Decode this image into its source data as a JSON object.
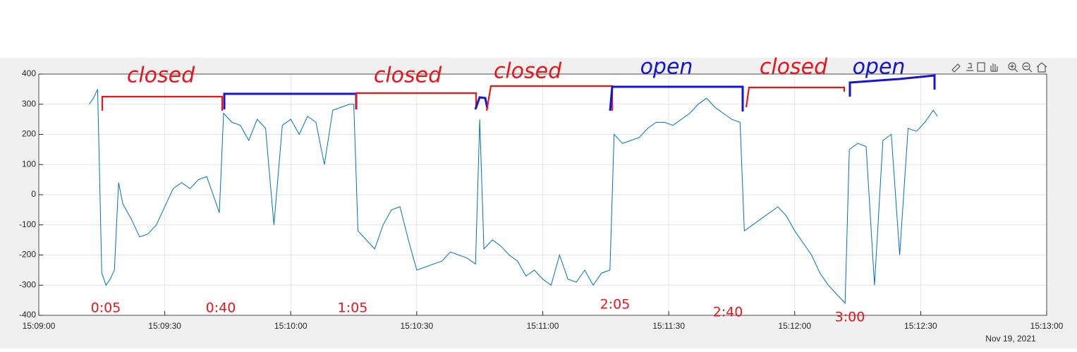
{
  "chart_data": {
    "type": "line",
    "color": "#0072bd",
    "grid": true,
    "x_axis_date": "Nov 19, 2021",
    "xlim": [
      "15:09:00",
      "15:13:00"
    ],
    "xticks": [
      "15:09:00",
      "15:09:30",
      "15:10:00",
      "15:10:30",
      "15:11:00",
      "15:11:30",
      "15:12:00",
      "15:12:30",
      "15:13:00"
    ],
    "ylim": [
      -400,
      400
    ],
    "yticks": [
      -400,
      -300,
      -200,
      -100,
      0,
      100,
      200,
      300,
      400
    ],
    "x": [
      "15:09:12",
      "15:09:13",
      "15:09:14",
      "15:09:15",
      "15:09:16",
      "15:09:17",
      "15:09:18",
      "15:09:19",
      "15:09:20",
      "15:09:22",
      "15:09:24",
      "15:09:26",
      "15:09:28",
      "15:09:30",
      "15:09:32",
      "15:09:34",
      "15:09:36",
      "15:09:38",
      "15:09:40",
      "15:09:42",
      "15:09:43",
      "15:09:44",
      "15:09:46",
      "15:09:48",
      "15:09:50",
      "15:09:52",
      "15:09:54",
      "15:09:56",
      "15:09:58",
      "15:10:00",
      "15:10:02",
      "15:10:04",
      "15:10:06",
      "15:10:08",
      "15:10:10",
      "15:10:12",
      "15:10:14",
      "15:10:15",
      "15:10:16",
      "15:10:18",
      "15:10:20",
      "15:10:22",
      "15:10:24",
      "15:10:26",
      "15:10:28",
      "15:10:30",
      "15:10:32",
      "15:10:34",
      "15:10:36",
      "15:10:38",
      "15:10:40",
      "15:10:42",
      "15:10:44",
      "15:10:45",
      "15:10:46",
      "15:10:48",
      "15:10:50",
      "15:10:52",
      "15:10:54",
      "15:10:56",
      "15:10:58",
      "15:11:00",
      "15:11:02",
      "15:11:04",
      "15:11:06",
      "15:11:08",
      "15:11:10",
      "15:11:12",
      "15:11:14",
      "15:11:16",
      "15:11:17",
      "15:11:19",
      "15:11:21",
      "15:11:23",
      "15:11:25",
      "15:11:27",
      "15:11:29",
      "15:11:31",
      "15:11:33",
      "15:11:35",
      "15:11:37",
      "15:11:39",
      "15:11:41",
      "15:11:43",
      "15:11:45",
      "15:11:47",
      "15:11:48",
      "15:11:50",
      "15:11:52",
      "15:11:54",
      "15:11:56",
      "15:11:58",
      "15:12:00",
      "15:12:02",
      "15:12:04",
      "15:12:06",
      "15:12:08",
      "15:12:10",
      "15:12:12",
      "15:12:13",
      "15:12:15",
      "15:12:17",
      "15:12:19",
      "15:12:21",
      "15:12:23",
      "15:12:25",
      "15:12:27",
      "15:12:29",
      "15:12:31",
      "15:12:33",
      "15:12:34"
    ],
    "values": [
      300,
      320,
      350,
      -260,
      -300,
      -280,
      -250,
      40,
      -30,
      -80,
      -140,
      -130,
      -100,
      -40,
      20,
      40,
      20,
      50,
      60,
      -20,
      -60,
      270,
      240,
      230,
      180,
      250,
      220,
      -100,
      230,
      250,
      200,
      260,
      240,
      100,
      280,
      290,
      300,
      300,
      -120,
      -150,
      -180,
      -100,
      -50,
      -40,
      -150,
      -250,
      -240,
      -230,
      -220,
      -190,
      -200,
      -210,
      -230,
      250,
      -180,
      -150,
      -170,
      -200,
      -220,
      -270,
      -250,
      -280,
      -300,
      -200,
      -280,
      -290,
      -250,
      -300,
      -260,
      -250,
      200,
      170,
      180,
      190,
      220,
      240,
      240,
      230,
      250,
      270,
      300,
      320,
      290,
      270,
      250,
      240,
      -120,
      -100,
      -80,
      -60,
      -40,
      -70,
      -120,
      -160,
      -200,
      -260,
      -300,
      -330,
      -360,
      150,
      170,
      160,
      -300,
      180,
      200,
      -200,
      220,
      210,
      240,
      280,
      260
    ]
  },
  "annotations": [
    {
      "text": "closed",
      "color": "#e8161b"
    },
    {
      "text": "closed",
      "color": "#e8161b"
    },
    {
      "text": "closed",
      "color": "#e8161b"
    },
    {
      "text": "open",
      "color": "#1414d6"
    },
    {
      "text": "closed",
      "color": "#e8161b"
    },
    {
      "text": "open",
      "color": "#1414d6"
    },
    {
      "text": "0:05",
      "color": "#e8161b"
    },
    {
      "text": "0:40",
      "color": "#e8161b"
    },
    {
      "text": "1:05",
      "color": "#e8161b"
    },
    {
      "text": "2:05",
      "color": "#e8161b"
    },
    {
      "text": "2:40",
      "color": "#e8161b"
    },
    {
      "text": "3:00",
      "color": "#e8161b"
    }
  ]
}
